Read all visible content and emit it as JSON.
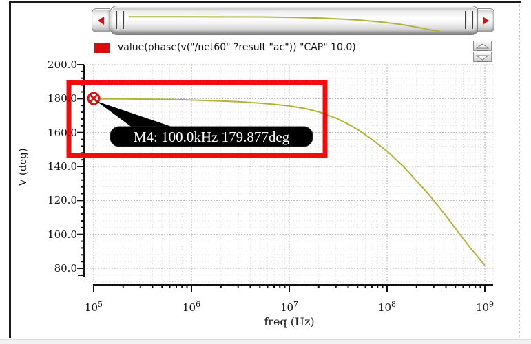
{
  "legend": {
    "swatch_color": "#dd0a0a",
    "label": "value(phase(v(\"/net60\" ?result \"ac\")) \"CAP\" 10.0)"
  },
  "scrollbar": {
    "left_icon": "triangle-left",
    "right_icon": "triangle-right"
  },
  "spinner": {
    "up_icon": "triangle-up",
    "down_icon": "triangle-down"
  },
  "tooltip": {
    "text": "M4: 100.0kHz 179.877deg"
  },
  "marker": {
    "id": "M4",
    "freq_label": "100.0kHz",
    "value_label": "179.877deg",
    "color": "#dd1111"
  },
  "highlight_color": "#f20d0d",
  "chart_data": {
    "type": "line",
    "title": "",
    "xlabel": "freq (Hz)",
    "ylabel": "V (deg)",
    "x_scale": "log",
    "xlim": [
      100000,
      1000000000
    ],
    "ylim": [
      80,
      200
    ],
    "grid": true,
    "legend_position": "top",
    "x_tick_base": 10,
    "x_tick_exponents": [
      5,
      6,
      7,
      8,
      9
    ],
    "y_minor_step": 4,
    "y_ticks": [
      {
        "value": 200,
        "label": "200.0"
      },
      {
        "value": 180,
        "label": "180.0"
      },
      {
        "value": 160,
        "label": "160.0"
      },
      {
        "value": 140,
        "label": "140.0"
      },
      {
        "value": 120,
        "label": "120.0"
      },
      {
        "value": 100,
        "label": "100.0"
      },
      {
        "value": 80,
        "label": "80.0"
      }
    ],
    "series": [
      {
        "name": "value(phase(v(\"/net60\" ?result \"ac\")) \"CAP\" 10.0)",
        "color": "#b2b23a",
        "points": [
          [
            100000,
            179.877
          ],
          [
            200000,
            179.8
          ],
          [
            300000,
            179.72
          ],
          [
            500000,
            179.55
          ],
          [
            700000,
            179.4
          ],
          [
            1000000,
            179.15
          ],
          [
            2000000,
            178.65
          ],
          [
            3000000,
            178.2
          ],
          [
            5000000,
            177.4
          ],
          [
            7000000,
            176.7
          ],
          [
            10000000,
            175.7
          ],
          [
            15000000,
            174.0
          ],
          [
            20000000,
            172.2
          ],
          [
            30000000,
            168.5
          ],
          [
            40000000,
            165.0
          ],
          [
            50000000,
            161.8
          ],
          [
            70000000,
            156.0
          ],
          [
            100000000,
            149.0
          ],
          [
            150000000,
            139.5
          ],
          [
            200000000,
            131.5
          ],
          [
            250000000,
            125.5
          ],
          [
            300000000,
            120.0
          ],
          [
            400000000,
            111.0
          ],
          [
            500000000,
            103.5
          ],
          [
            600000000,
            97.5
          ],
          [
            700000000,
            92.5
          ],
          [
            800000000,
            88.5
          ],
          [
            900000000,
            85.0
          ],
          [
            1000000000,
            81.8
          ]
        ]
      }
    ],
    "overview": {
      "color": "#b2b23a",
      "points": [
        [
          0.0,
          0.2
        ],
        [
          0.4,
          0.21
        ],
        [
          0.5,
          0.24
        ],
        [
          0.58,
          0.28
        ],
        [
          0.64,
          0.33
        ],
        [
          0.7,
          0.4
        ],
        [
          0.76,
          0.5
        ],
        [
          0.82,
          0.64
        ],
        [
          0.87,
          0.8
        ],
        [
          0.91,
          0.95
        ],
        [
          0.935,
          1.0
        ]
      ]
    }
  }
}
